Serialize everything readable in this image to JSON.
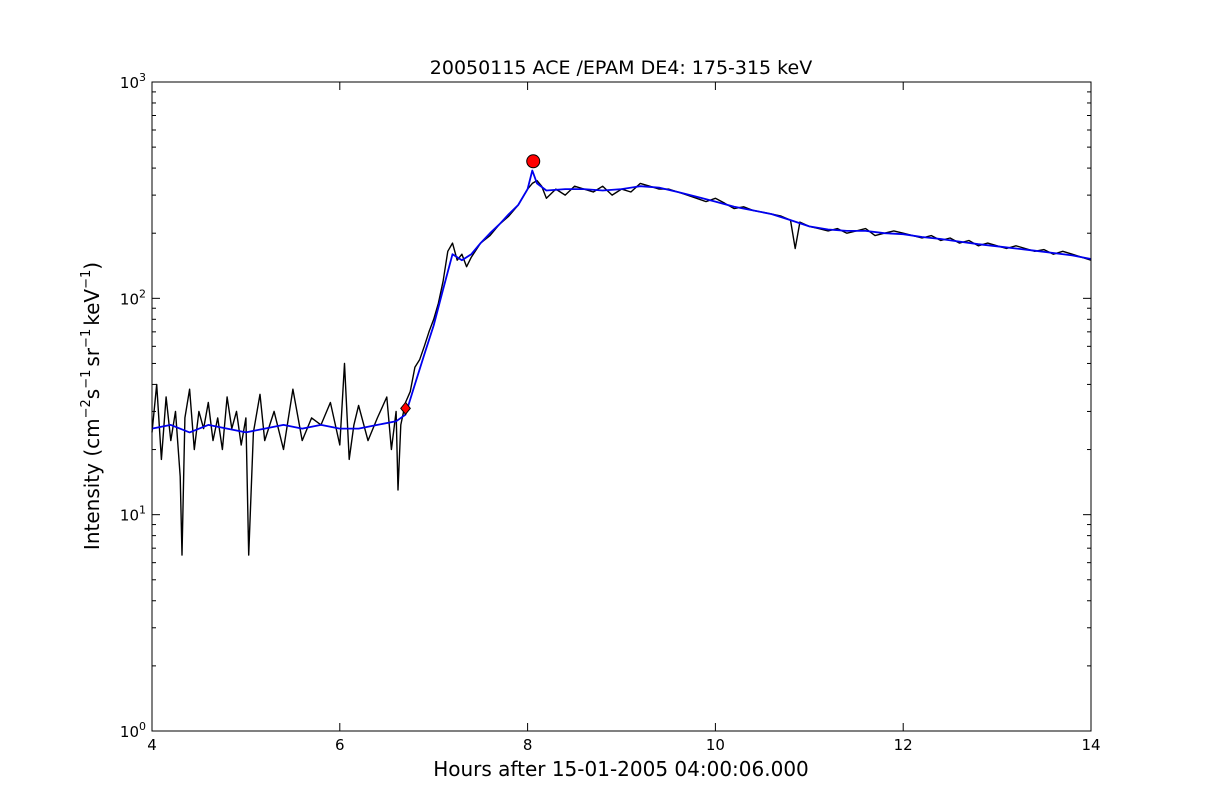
{
  "chart_data": {
    "type": "line",
    "title": "20050115 ACE /EPAM DE4: 175-315 keV",
    "xlabel": "Hours after 15-01-2005 04:00:06.000",
    "ylabel": {
      "prefix": "Intensity (cm",
      "exp1": "−2",
      "mid1": "s",
      "exp2": "−1",
      "mid2": "sr",
      "exp3": "−1",
      "mid3": "keV",
      "exp4": "−1",
      "suffix": ")"
    },
    "xlim": [
      4,
      14
    ],
    "ylim": [
      1,
      1000
    ],
    "yscale": "log",
    "grid": false,
    "x_ticks": [
      "4",
      "6",
      "8",
      "10",
      "12",
      "14"
    ],
    "y_ticks": [
      {
        "value": 1,
        "base": "10",
        "exp": "0"
      },
      {
        "value": 10,
        "base": "10",
        "exp": "1"
      },
      {
        "value": 100,
        "base": "10",
        "exp": "2"
      },
      {
        "value": 1000,
        "base": "10",
        "exp": "3"
      }
    ],
    "colors": {
      "raw": "#000000",
      "smoothed": "#0000ee",
      "markers": "#ff0000"
    },
    "series": [
      {
        "key": "raw",
        "points": [
          [
            4.0,
            24
          ],
          [
            4.05,
            40
          ],
          [
            4.1,
            18
          ],
          [
            4.15,
            35
          ],
          [
            4.2,
            22
          ],
          [
            4.25,
            30
          ],
          [
            4.3,
            15
          ],
          [
            4.32,
            6.5
          ],
          [
            4.35,
            28
          ],
          [
            4.4,
            38
          ],
          [
            4.45,
            20
          ],
          [
            4.5,
            30
          ],
          [
            4.55,
            25
          ],
          [
            4.6,
            33
          ],
          [
            4.65,
            22
          ],
          [
            4.7,
            28
          ],
          [
            4.75,
            20
          ],
          [
            4.8,
            35
          ],
          [
            4.85,
            25
          ],
          [
            4.9,
            30
          ],
          [
            4.95,
            21
          ],
          [
            5.0,
            28
          ],
          [
            5.03,
            6.5
          ],
          [
            5.08,
            24
          ],
          [
            5.15,
            36
          ],
          [
            5.2,
            22
          ],
          [
            5.3,
            30
          ],
          [
            5.4,
            20
          ],
          [
            5.5,
            38
          ],
          [
            5.6,
            22
          ],
          [
            5.7,
            28
          ],
          [
            5.8,
            26
          ],
          [
            5.9,
            33
          ],
          [
            6.0,
            21
          ],
          [
            6.05,
            50
          ],
          [
            6.1,
            18
          ],
          [
            6.15,
            26
          ],
          [
            6.2,
            32
          ],
          [
            6.3,
            22
          ],
          [
            6.4,
            28
          ],
          [
            6.5,
            35
          ],
          [
            6.55,
            20
          ],
          [
            6.6,
            30
          ],
          [
            6.62,
            13
          ],
          [
            6.65,
            26
          ],
          [
            6.7,
            33
          ],
          [
            6.75,
            37
          ],
          [
            6.8,
            48
          ],
          [
            6.85,
            52
          ],
          [
            6.9,
            60
          ],
          [
            6.95,
            70
          ],
          [
            7.0,
            80
          ],
          [
            7.05,
            95
          ],
          [
            7.1,
            120
          ],
          [
            7.15,
            165
          ],
          [
            7.2,
            180
          ],
          [
            7.25,
            150
          ],
          [
            7.3,
            160
          ],
          [
            7.35,
            140
          ],
          [
            7.4,
            155
          ],
          [
            7.5,
            180
          ],
          [
            7.6,
            195
          ],
          [
            7.7,
            220
          ],
          [
            7.8,
            240
          ],
          [
            7.9,
            270
          ],
          [
            8.0,
            320
          ],
          [
            8.05,
            340
          ],
          [
            8.1,
            350
          ],
          [
            8.15,
            330
          ],
          [
            8.2,
            290
          ],
          [
            8.3,
            320
          ],
          [
            8.4,
            300
          ],
          [
            8.5,
            330
          ],
          [
            8.6,
            320
          ],
          [
            8.7,
            310
          ],
          [
            8.8,
            330
          ],
          [
            8.9,
            300
          ],
          [
            9.0,
            320
          ],
          [
            9.1,
            310
          ],
          [
            9.2,
            340
          ],
          [
            9.3,
            330
          ],
          [
            9.4,
            320
          ],
          [
            9.5,
            320
          ],
          [
            9.6,
            310
          ],
          [
            9.7,
            300
          ],
          [
            9.8,
            290
          ],
          [
            9.9,
            280
          ],
          [
            10.0,
            290
          ],
          [
            10.1,
            275
          ],
          [
            10.2,
            260
          ],
          [
            10.3,
            265
          ],
          [
            10.4,
            255
          ],
          [
            10.5,
            250
          ],
          [
            10.6,
            245
          ],
          [
            10.7,
            240
          ],
          [
            10.8,
            230
          ],
          [
            10.85,
            170
          ],
          [
            10.9,
            225
          ],
          [
            11.0,
            215
          ],
          [
            11.1,
            210
          ],
          [
            11.2,
            205
          ],
          [
            11.3,
            210
          ],
          [
            11.4,
            200
          ],
          [
            11.5,
            205
          ],
          [
            11.6,
            210
          ],
          [
            11.7,
            195
          ],
          [
            11.8,
            200
          ],
          [
            11.9,
            205
          ],
          [
            12.0,
            200
          ],
          [
            12.1,
            195
          ],
          [
            12.2,
            190
          ],
          [
            12.3,
            195
          ],
          [
            12.4,
            185
          ],
          [
            12.5,
            190
          ],
          [
            12.6,
            180
          ],
          [
            12.7,
            185
          ],
          [
            12.8,
            175
          ],
          [
            12.9,
            180
          ],
          [
            13.0,
            175
          ],
          [
            13.1,
            170
          ],
          [
            13.2,
            175
          ],
          [
            13.3,
            170
          ],
          [
            13.4,
            165
          ],
          [
            13.5,
            168
          ],
          [
            13.6,
            160
          ],
          [
            13.7,
            165
          ],
          [
            13.8,
            160
          ],
          [
            13.9,
            155
          ],
          [
            14.0,
            150
          ]
        ]
      },
      {
        "key": "smoothed",
        "points": [
          [
            4.0,
            25
          ],
          [
            4.2,
            26
          ],
          [
            4.4,
            24
          ],
          [
            4.6,
            26
          ],
          [
            4.8,
            25
          ],
          [
            5.0,
            24
          ],
          [
            5.2,
            25
          ],
          [
            5.4,
            26
          ],
          [
            5.6,
            25
          ],
          [
            5.8,
            26
          ],
          [
            6.0,
            25
          ],
          [
            6.2,
            25
          ],
          [
            6.4,
            26
          ],
          [
            6.6,
            27
          ],
          [
            6.7,
            29
          ],
          [
            6.8,
            40
          ],
          [
            6.9,
            55
          ],
          [
            7.0,
            75
          ],
          [
            7.1,
            110
          ],
          [
            7.2,
            160
          ],
          [
            7.3,
            150
          ],
          [
            7.4,
            160
          ],
          [
            7.5,
            180
          ],
          [
            7.6,
            200
          ],
          [
            7.7,
            220
          ],
          [
            7.8,
            245
          ],
          [
            7.9,
            270
          ],
          [
            8.0,
            320
          ],
          [
            8.05,
            390
          ],
          [
            8.1,
            340
          ],
          [
            8.2,
            315
          ],
          [
            8.4,
            320
          ],
          [
            8.6,
            320
          ],
          [
            8.8,
            315
          ],
          [
            9.0,
            320
          ],
          [
            9.2,
            330
          ],
          [
            9.4,
            325
          ],
          [
            9.6,
            310
          ],
          [
            9.8,
            295
          ],
          [
            10.0,
            280
          ],
          [
            10.2,
            265
          ],
          [
            10.4,
            255
          ],
          [
            10.6,
            245
          ],
          [
            10.8,
            230
          ],
          [
            11.0,
            215
          ],
          [
            11.2,
            208
          ],
          [
            11.4,
            205
          ],
          [
            11.6,
            205
          ],
          [
            11.8,
            200
          ],
          [
            12.0,
            198
          ],
          [
            12.2,
            192
          ],
          [
            12.4,
            188
          ],
          [
            12.6,
            183
          ],
          [
            12.8,
            178
          ],
          [
            13.0,
            174
          ],
          [
            13.2,
            170
          ],
          [
            13.4,
            166
          ],
          [
            13.6,
            162
          ],
          [
            13.8,
            158
          ],
          [
            14.0,
            152
          ]
        ]
      }
    ],
    "markers": [
      {
        "shape": "diamond",
        "x": 6.7,
        "y": 31
      },
      {
        "shape": "circle",
        "x": 8.06,
        "y": 430
      }
    ]
  }
}
